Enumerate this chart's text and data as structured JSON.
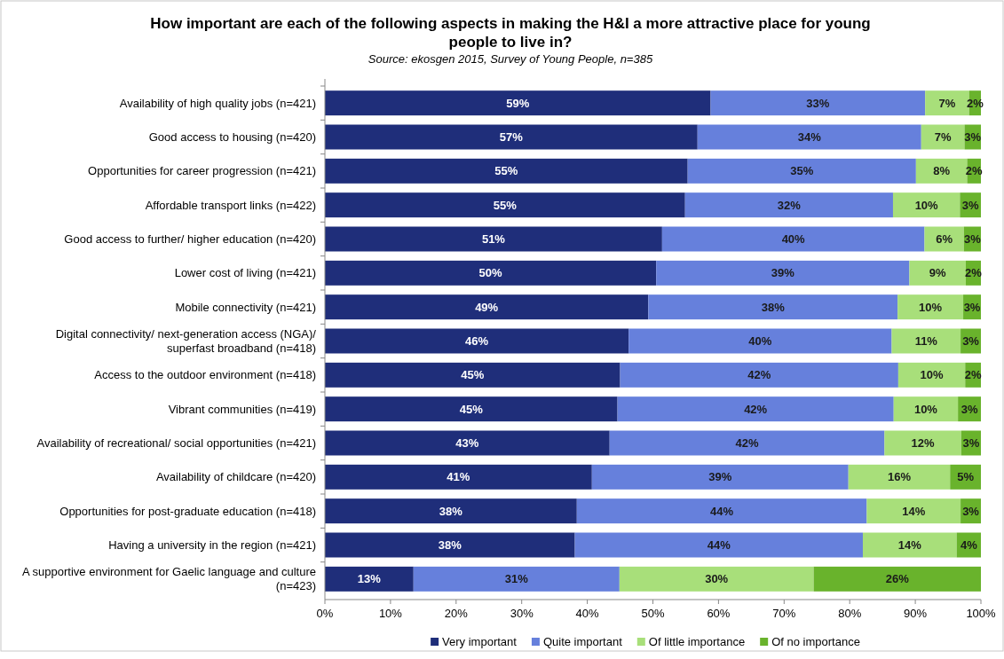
{
  "chart_data": {
    "type": "bar",
    "orientation": "horizontal",
    "stacked": true,
    "title": "How important are each of the following aspects in making the H&I a more attractive place for young people to live in?",
    "subtitle": "Source: ekosgen 2015, Survey of Young People, n=385",
    "categories": [
      "Availability of high quality jobs (n=421)",
      "Good access to housing (n=420)",
      "Opportunities for career progression (n=421)",
      "Affordable transport links (n=422)",
      "Good access to further/ higher education (n=420)",
      "Lower cost of living (n=421)",
      "Mobile connectivity (n=421)",
      "Digital connectivity/ next-generation access (NGA)/ superfast broadband (n=418)",
      "Access to the outdoor environment (n=418)",
      "Vibrant communities (n=419)",
      "Availability of recreational/ social opportunities (n=421)",
      "Availability of childcare (n=420)",
      "Opportunities for post-graduate education (n=418)",
      "Having a university in the region (n=421)",
      "A supportive environment for Gaelic language and culture (n=423)"
    ],
    "series": [
      {
        "name": "Very important",
        "color": "#1f2e7a",
        "values": [
          58.8,
          56.8,
          55.3,
          54.9,
          51.4,
          50.5,
          49.3,
          46.3,
          45.0,
          44.6,
          43.4,
          40.7,
          38.4,
          38.1,
          13.5
        ],
        "value_labels": [
          "59%",
          "57%",
          "55%",
          "55%",
          "51%",
          "50%",
          "49%",
          "46%",
          "45%",
          "45%",
          "43%",
          "41%",
          "38%",
          "38%",
          "13%"
        ]
      },
      {
        "name": "Quite important",
        "color": "#6680dc",
        "values": [
          32.7,
          34.1,
          34.8,
          31.7,
          40.0,
          38.6,
          38.0,
          40.1,
          42.4,
          42.1,
          41.9,
          39.1,
          44.2,
          43.9,
          31.4
        ],
        "value_labels": [
          "33%",
          "34%",
          "35%",
          "32%",
          "40%",
          "39%",
          "38%",
          "40%",
          "42%",
          "42%",
          "42%",
          "39%",
          "44%",
          "44%",
          "31%"
        ]
      },
      {
        "name": "Of little importance",
        "color": "#a8df7a",
        "values": [
          6.7,
          6.6,
          7.8,
          10.2,
          6.0,
          8.6,
          10.0,
          10.5,
          10.2,
          9.8,
          11.7,
          15.5,
          14.3,
          14.3,
          29.6
        ],
        "value_labels": [
          "7%",
          "7%",
          "8%",
          "10%",
          "6%",
          "9%",
          "10%",
          "11%",
          "10%",
          "10%",
          "12%",
          "16%",
          "14%",
          "14%",
          "30%"
        ]
      },
      {
        "name": "Of no importance",
        "color": "#69b32c",
        "values": [
          1.8,
          2.5,
          2.1,
          3.2,
          2.6,
          2.3,
          2.7,
          3.1,
          2.4,
          3.5,
          3.0,
          4.7,
          3.1,
          3.7,
          25.5
        ],
        "value_labels": [
          "2%",
          "3%",
          "2%",
          "3%",
          "3%",
          "2%",
          "3%",
          "3%",
          "2%",
          "3%",
          "3%",
          "5%",
          "3%",
          "4%",
          "26%"
        ]
      }
    ],
    "xlim": [
      0,
      100
    ],
    "xticks": [
      {
        "value": 0,
        "label": "0%"
      },
      {
        "value": 10,
        "label": "10%"
      },
      {
        "value": 20,
        "label": "20%"
      },
      {
        "value": 30,
        "label": "30%"
      },
      {
        "value": 40,
        "label": "40%"
      },
      {
        "value": 50,
        "label": "50%"
      },
      {
        "value": 60,
        "label": "60%"
      },
      {
        "value": 70,
        "label": "70%"
      },
      {
        "value": 80,
        "label": "80%"
      },
      {
        "value": 90,
        "label": "90%"
      },
      {
        "value": 100,
        "label": "100%"
      }
    ],
    "legend": "bottom"
  }
}
